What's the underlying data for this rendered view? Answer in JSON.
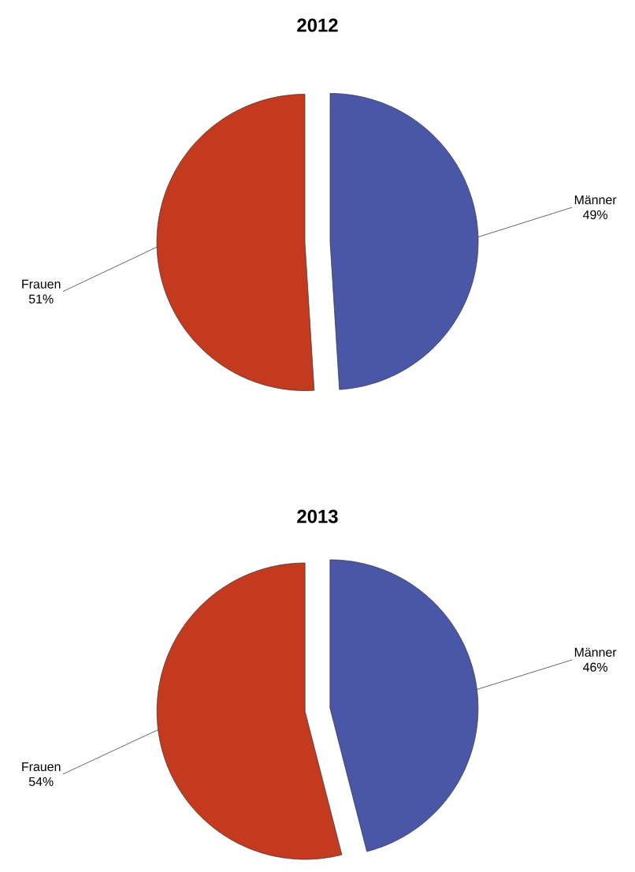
{
  "chart_data": [
    {
      "type": "pie",
      "title": "2012",
      "categories": [
        "Männer",
        "Frauen"
      ],
      "values": [
        49,
        51
      ],
      "value_labels": [
        "49%",
        "51%"
      ],
      "colors": [
        "#4a56a6",
        "#c33a1f"
      ]
    },
    {
      "type": "pie",
      "title": "2013",
      "categories": [
        "Männer",
        "Frauen"
      ],
      "values": [
        46,
        54
      ],
      "value_labels": [
        "46%",
        "54%"
      ],
      "colors": [
        "#4a56a6",
        "#c33a1f"
      ]
    }
  ]
}
